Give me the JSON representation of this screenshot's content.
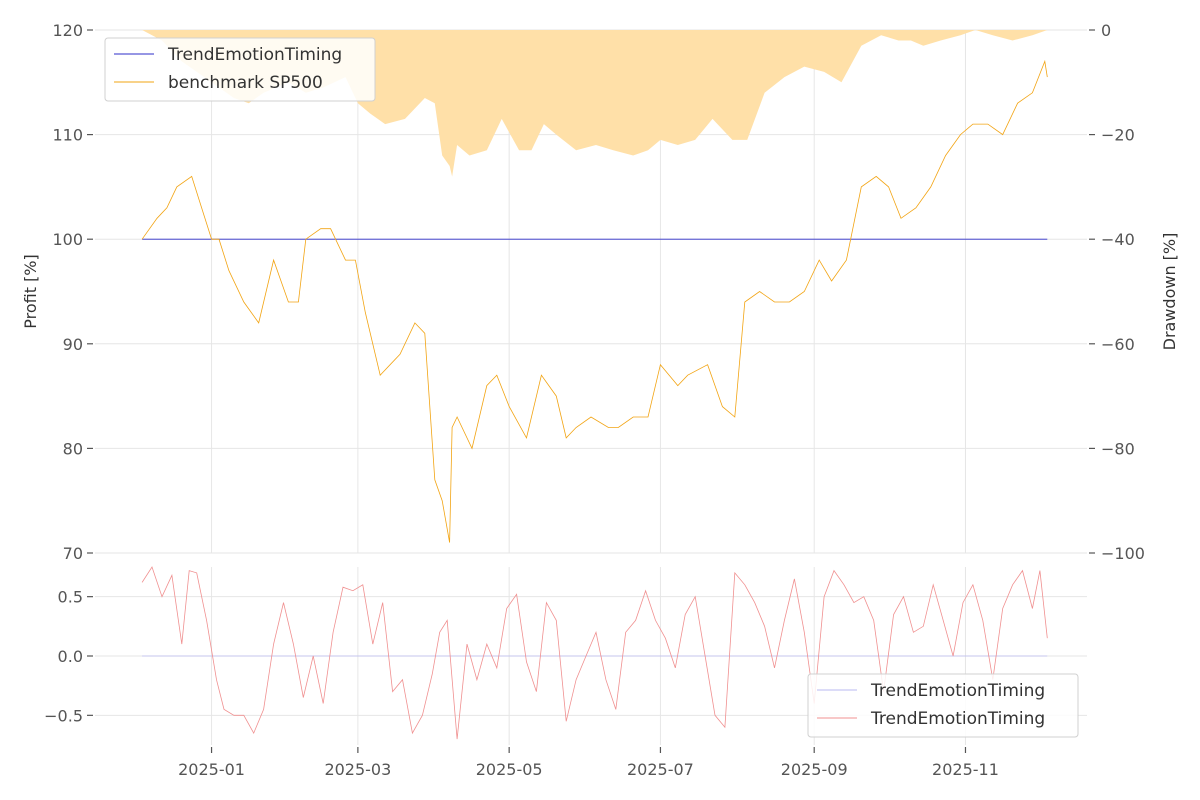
{
  "chart_data": [
    {
      "type": "area",
      "panel": "drawdown",
      "ylabel": "Drawdown [%]",
      "ylim": [
        -100,
        0
      ],
      "yticks": [
        0,
        -20,
        -40,
        -60,
        -80,
        -100
      ],
      "ytick_labels": [
        "0",
        "−20",
        "−40",
        "−60",
        "−80",
        "−100"
      ],
      "y_axis_side": "right",
      "color": "#ffe0a8",
      "series": [
        {
          "x": [
            "2024-12-04",
            "2024-12-12",
            "2024-12-20",
            "2025-01-01",
            "2025-01-10",
            "2025-01-16",
            "2025-01-22",
            "2025-02-01",
            "2025-02-08",
            "2025-02-15",
            "2025-02-24",
            "2025-03-01",
            "2025-03-06",
            "2025-03-12",
            "2025-03-20",
            "2025-03-28",
            "2025-04-01",
            "2025-04-04",
            "2025-04-07",
            "2025-04-08",
            "2025-04-10",
            "2025-04-15",
            "2025-04-22",
            "2025-04-28",
            "2025-05-05",
            "2025-05-10",
            "2025-05-15",
            "2025-05-20",
            "2025-05-28",
            "2025-06-05",
            "2025-06-12",
            "2025-06-20",
            "2025-06-26",
            "2025-07-01",
            "2025-07-08",
            "2025-07-15",
            "2025-07-22",
            "2025-07-30",
            "2025-08-05",
            "2025-08-12",
            "2025-08-20",
            "2025-08-28",
            "2025-09-05",
            "2025-09-12",
            "2025-09-20",
            "2025-09-28",
            "2025-10-05",
            "2025-10-10",
            "2025-10-15",
            "2025-10-22",
            "2025-10-30",
            "2025-11-05",
            "2025-11-12",
            "2025-11-20",
            "2025-11-28",
            "2025-12-04"
          ],
          "y": [
            0,
            -2,
            -6,
            -10,
            -13,
            -14,
            -12,
            -10,
            -12,
            -11,
            -9,
            -14,
            -16,
            -18,
            -17,
            -13,
            -14,
            -24,
            -26,
            -28,
            -22,
            -24,
            -23,
            -17,
            -23,
            -23,
            -18,
            -20,
            -23,
            -22,
            -23,
            -24,
            -23,
            -21,
            -22,
            -21,
            -17,
            -21,
            -21,
            -12,
            -9,
            -7,
            -8,
            -10,
            -3,
            -1,
            -2,
            -2,
            -3,
            -2,
            -1,
            0,
            -1,
            -2,
            -1,
            0
          ]
        }
      ]
    },
    {
      "type": "line",
      "panel": "profit",
      "ylabel": "Profit [%]",
      "xlabel": "",
      "ylim": [
        70,
        120
      ],
      "yticks": [
        70,
        80,
        90,
        100,
        110,
        120
      ],
      "xticks": [
        "2025-01",
        "2025-03",
        "2025-05",
        "2025-07",
        "2025-09",
        "2025-11"
      ],
      "legend": "top-left",
      "series": [
        {
          "name": "TrendEmotionTiming",
          "color": "#2c2cc8",
          "x": [
            "2024-12-04",
            "2025-12-04"
          ],
          "y": [
            100,
            100
          ]
        },
        {
          "name": "benchmark SP500",
          "color": "#f2a413",
          "x": [
            "2024-12-04",
            "2024-12-10",
            "2024-12-14",
            "2024-12-18",
            "2024-12-24",
            "2024-12-28",
            "2025-01-01",
            "2025-01-04",
            "2025-01-08",
            "2025-01-14",
            "2025-01-20",
            "2025-01-26",
            "2025-02-01",
            "2025-02-05",
            "2025-02-08",
            "2025-02-14",
            "2025-02-18",
            "2025-02-24",
            "2025-02-28",
            "2025-03-04",
            "2025-03-10",
            "2025-03-14",
            "2025-03-18",
            "2025-03-24",
            "2025-03-28",
            "2025-04-01",
            "2025-04-04",
            "2025-04-07",
            "2025-04-08",
            "2025-04-10",
            "2025-04-16",
            "2025-04-22",
            "2025-04-26",
            "2025-05-01",
            "2025-05-08",
            "2025-05-14",
            "2025-05-20",
            "2025-05-24",
            "2025-05-28",
            "2025-06-03",
            "2025-06-10",
            "2025-06-14",
            "2025-06-20",
            "2025-06-26",
            "2025-07-01",
            "2025-07-08",
            "2025-07-12",
            "2025-07-20",
            "2025-07-26",
            "2025-07-31",
            "2025-08-04",
            "2025-08-10",
            "2025-08-16",
            "2025-08-22",
            "2025-08-28",
            "2025-09-03",
            "2025-09-08",
            "2025-09-14",
            "2025-09-20",
            "2025-09-26",
            "2025-10-01",
            "2025-10-06",
            "2025-10-12",
            "2025-10-18",
            "2025-10-24",
            "2025-10-30",
            "2025-11-04",
            "2025-11-10",
            "2025-11-16",
            "2025-11-22",
            "2025-11-28",
            "2025-12-03",
            "2025-12-04"
          ],
          "y": [
            100,
            102,
            103,
            105,
            106,
            103,
            100,
            100,
            97,
            94,
            92,
            98,
            94,
            94,
            100,
            101,
            101,
            98,
            98,
            93,
            87,
            88,
            89,
            92,
            91,
            77,
            75,
            71,
            82,
            83,
            80,
            86,
            87,
            84,
            81,
            87,
            85,
            81,
            82,
            83,
            82,
            82,
            83,
            83,
            88,
            86,
            87,
            88,
            84,
            83,
            94,
            95,
            94,
            94,
            95,
            98,
            96,
            98,
            105,
            106,
            105,
            102,
            103,
            105,
            108,
            110,
            111,
            111,
            110,
            113,
            114,
            117,
            115.5
          ]
        }
      ]
    },
    {
      "type": "line",
      "panel": "sentiment",
      "ylim": [
        -0.75,
        0.75
      ],
      "yticks": [
        0.5,
        0.0,
        -0.5
      ],
      "ytick_labels": [
        "0.5",
        "0.0",
        "−0.5"
      ],
      "legend": "bottom-right",
      "series": [
        {
          "name": "TrendEmotionTiming",
          "color": "#b9b9f0",
          "x": [
            "2024-12-04",
            "2025-12-04"
          ],
          "y": [
            0,
            0
          ]
        },
        {
          "name": "TrendEmotionTiming",
          "color": "#f09090",
          "x": [
            "2024-12-04",
            "2024-12-08",
            "2024-12-12",
            "2024-12-16",
            "2024-12-20",
            "2024-12-23",
            "2024-12-26",
            "2024-12-30",
            "2025-01-03",
            "2025-01-06",
            "2025-01-10",
            "2025-01-14",
            "2025-01-18",
            "2025-01-22",
            "2025-01-26",
            "2025-01-30",
            "2025-02-03",
            "2025-02-07",
            "2025-02-11",
            "2025-02-15",
            "2025-02-19",
            "2025-02-23",
            "2025-02-27",
            "2025-03-03",
            "2025-03-07",
            "2025-03-11",
            "2025-03-15",
            "2025-03-19",
            "2025-03-23",
            "2025-03-27",
            "2025-03-31",
            "2025-04-03",
            "2025-04-06",
            "2025-04-10",
            "2025-04-14",
            "2025-04-18",
            "2025-04-22",
            "2025-04-26",
            "2025-04-30",
            "2025-05-04",
            "2025-05-08",
            "2025-05-12",
            "2025-05-16",
            "2025-05-20",
            "2025-05-24",
            "2025-05-28",
            "2025-06-01",
            "2025-06-05",
            "2025-06-09",
            "2025-06-13",
            "2025-06-17",
            "2025-06-21",
            "2025-06-25",
            "2025-06-29",
            "2025-07-03",
            "2025-07-07",
            "2025-07-11",
            "2025-07-15",
            "2025-07-19",
            "2025-07-23",
            "2025-07-27",
            "2025-07-31",
            "2025-08-04",
            "2025-08-08",
            "2025-08-12",
            "2025-08-16",
            "2025-08-20",
            "2025-08-24",
            "2025-08-28",
            "2025-09-01",
            "2025-09-05",
            "2025-09-09",
            "2025-09-13",
            "2025-09-17",
            "2025-09-21",
            "2025-09-25",
            "2025-09-29",
            "2025-10-03",
            "2025-10-07",
            "2025-10-11",
            "2025-10-15",
            "2025-10-19",
            "2025-10-23",
            "2025-10-27",
            "2025-10-31",
            "2025-11-04",
            "2025-11-08",
            "2025-11-12",
            "2025-11-16",
            "2025-11-20",
            "2025-11-24",
            "2025-11-28",
            "2025-12-01",
            "2025-12-04"
          ],
          "y": [
            0.62,
            0.75,
            0.5,
            0.68,
            0.1,
            0.72,
            0.7,
            0.3,
            -0.2,
            -0.45,
            -0.5,
            -0.5,
            -0.65,
            -0.45,
            0.1,
            0.45,
            0.1,
            -0.35,
            0.0,
            -0.4,
            0.2,
            0.58,
            0.55,
            0.6,
            0.1,
            0.45,
            -0.3,
            -0.2,
            -0.65,
            -0.5,
            -0.15,
            0.2,
            0.3,
            -0.7,
            0.1,
            -0.2,
            0.1,
            -0.1,
            0.4,
            0.52,
            -0.05,
            -0.3,
            0.45,
            0.3,
            -0.55,
            -0.2,
            0.0,
            0.2,
            -0.2,
            -0.45,
            0.2,
            0.3,
            0.55,
            0.3,
            0.15,
            -0.1,
            0.35,
            0.5,
            0.0,
            -0.5,
            -0.6,
            0.7,
            0.6,
            0.45,
            0.25,
            -0.1,
            0.3,
            0.65,
            0.2,
            -0.4,
            0.5,
            0.72,
            0.6,
            0.45,
            0.5,
            0.3,
            -0.3,
            0.35,
            0.5,
            0.2,
            0.25,
            0.6,
            0.3,
            0.0,
            0.45,
            0.6,
            0.3,
            -0.2,
            0.4,
            0.6,
            0.72,
            0.4,
            0.72,
            0.15
          ]
        }
      ]
    }
  ]
}
